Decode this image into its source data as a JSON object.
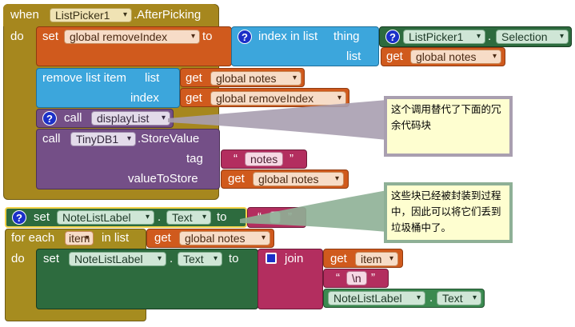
{
  "event": {
    "when": "when",
    "component": "ListPicker1",
    "event_name": ".AfterPicking",
    "do": "do"
  },
  "set_remove_index": {
    "set": "set",
    "var": "global removeIndex",
    "to": "to",
    "index_in_list": "index in list",
    "thing": "thing",
    "list": "list",
    "selection_component": "ListPicker1",
    "selection_dot": ".",
    "selection_prop": "Selection",
    "get": "get",
    "get_var": "global notes"
  },
  "remove_list_item": {
    "label": "remove list item",
    "list": "list",
    "index": "index",
    "get": "get",
    "list_var": "global notes",
    "index_var": "global removeIndex"
  },
  "call_display": {
    "call": "call",
    "proc": "displayList"
  },
  "store_value": {
    "call": "call",
    "component": "TinyDB1",
    "method": ".StoreValue",
    "tag": "tag",
    "tag_value": "notes",
    "value_to_store": "valueToStore",
    "get": "get",
    "var": "global notes"
  },
  "set_label": {
    "set": "set",
    "component": "NoteListLabel",
    "dot": ".",
    "prop": "Text",
    "to": "to",
    "value": ""
  },
  "for_each": {
    "for_each": "for each",
    "item": "item",
    "in_list": "in list",
    "get": "get",
    "var": "global notes",
    "do": "do",
    "set": "set",
    "component": "NoteListLabel",
    "dot": ".",
    "prop": "Text",
    "to": "to",
    "join": "join",
    "get_item": "item",
    "newline": "\\n",
    "component2": "NoteListLabel",
    "dot2": ".",
    "prop2": "Text"
  },
  "comments": {
    "first": "这个调用替代了下面的冗余代码块",
    "second": "这些块已经被封装到过程中，因此可以将它们丢到垃圾桶中了。"
  },
  "colors": {
    "event": "#a6871e",
    "variable": "#d05a1d",
    "list": "#3ca6dc",
    "procedure": "#744f87",
    "component": "#2d6b3e",
    "text": "#b32e5f",
    "control": "#a68c1f",
    "component_prop": "#3b8a50"
  },
  "quote_open": "“",
  "quote_close": "”"
}
